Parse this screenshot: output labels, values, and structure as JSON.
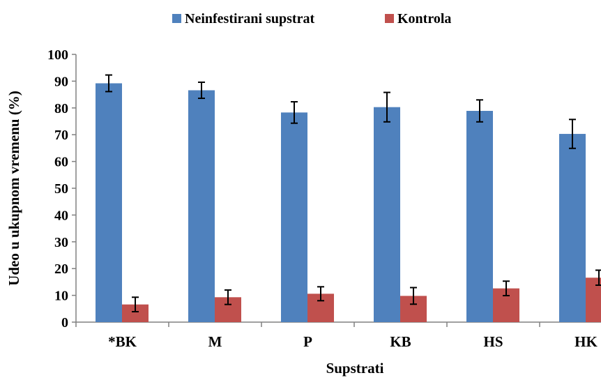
{
  "chart_data": {
    "type": "bar",
    "categories": [
      "*BK",
      "M",
      "P",
      "KB",
      "HS",
      "HK"
    ],
    "series": [
      {
        "name": "Neinfestirani supstrat",
        "color": "#4f81bd",
        "values": [
          89.2,
          86.6,
          78.3,
          80.3,
          78.9,
          70.3
        ],
        "errors": [
          3.1,
          3.0,
          4.0,
          5.5,
          4.1,
          5.4
        ]
      },
      {
        "name": "Kontrola",
        "color": "#c0504d",
        "values": [
          6.6,
          9.3,
          10.6,
          9.8,
          12.6,
          16.6
        ],
        "errors": [
          2.7,
          2.7,
          2.6,
          3.1,
          2.7,
          2.8
        ]
      }
    ],
    "xlabel": "Supstrati",
    "ylabel": "Udeo u ukupnom vremenu (%)",
    "ylim": [
      0,
      100
    ],
    "yticks": [
      "0",
      "10",
      "20",
      "30",
      "40",
      "50",
      "60",
      "70",
      "80",
      "90",
      "100"
    ],
    "grid": false,
    "legend_position": "top"
  }
}
